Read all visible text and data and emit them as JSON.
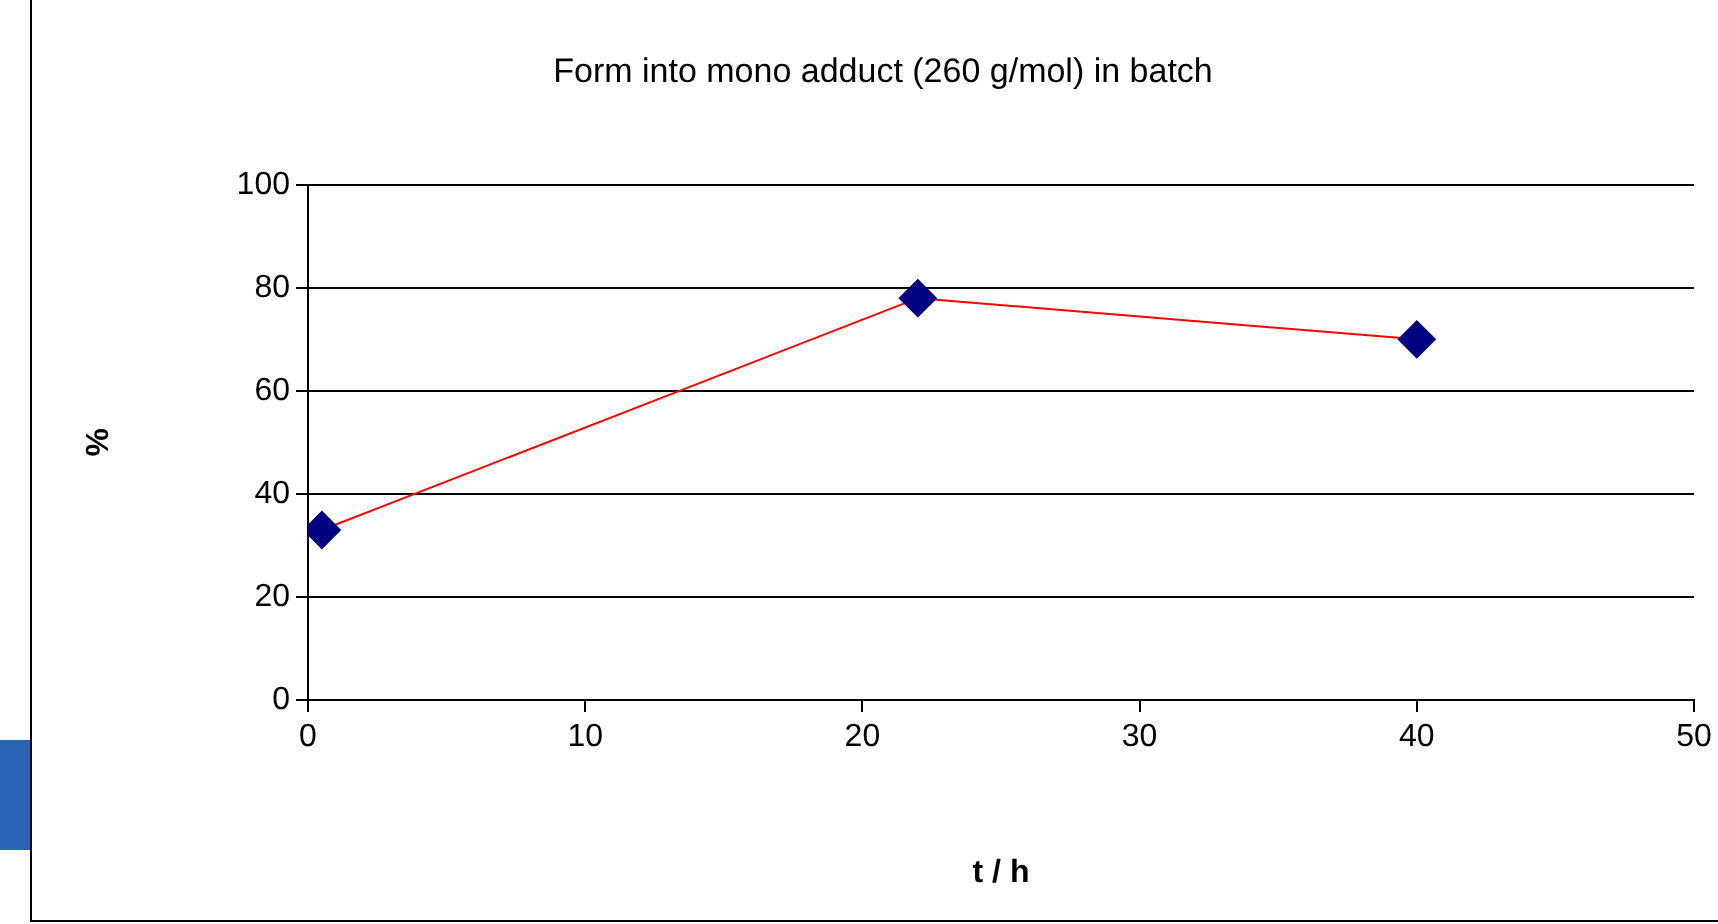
{
  "chart_data": {
    "type": "line",
    "title": "Form into mono adduct (260 g/mol) in batch",
    "xlabel": "t / h",
    "ylabel": "%",
    "x": [
      0.5,
      22,
      40
    ],
    "series": [
      {
        "color": "#ff0000",
        "colors": [
          "#000080",
          "#000080",
          "#000080"
        ],
        "values": [
          33,
          78,
          70
        ]
      }
    ],
    "xlim": [
      0,
      50
    ],
    "xticks": [
      0,
      10,
      20,
      30,
      40,
      50
    ],
    "ylim": [
      0,
      100
    ],
    "yticks": [
      0,
      20,
      40,
      60,
      80,
      100
    ],
    "grid": "y",
    "legend": false,
    "marker": "diamond",
    "line_style": "solid"
  }
}
